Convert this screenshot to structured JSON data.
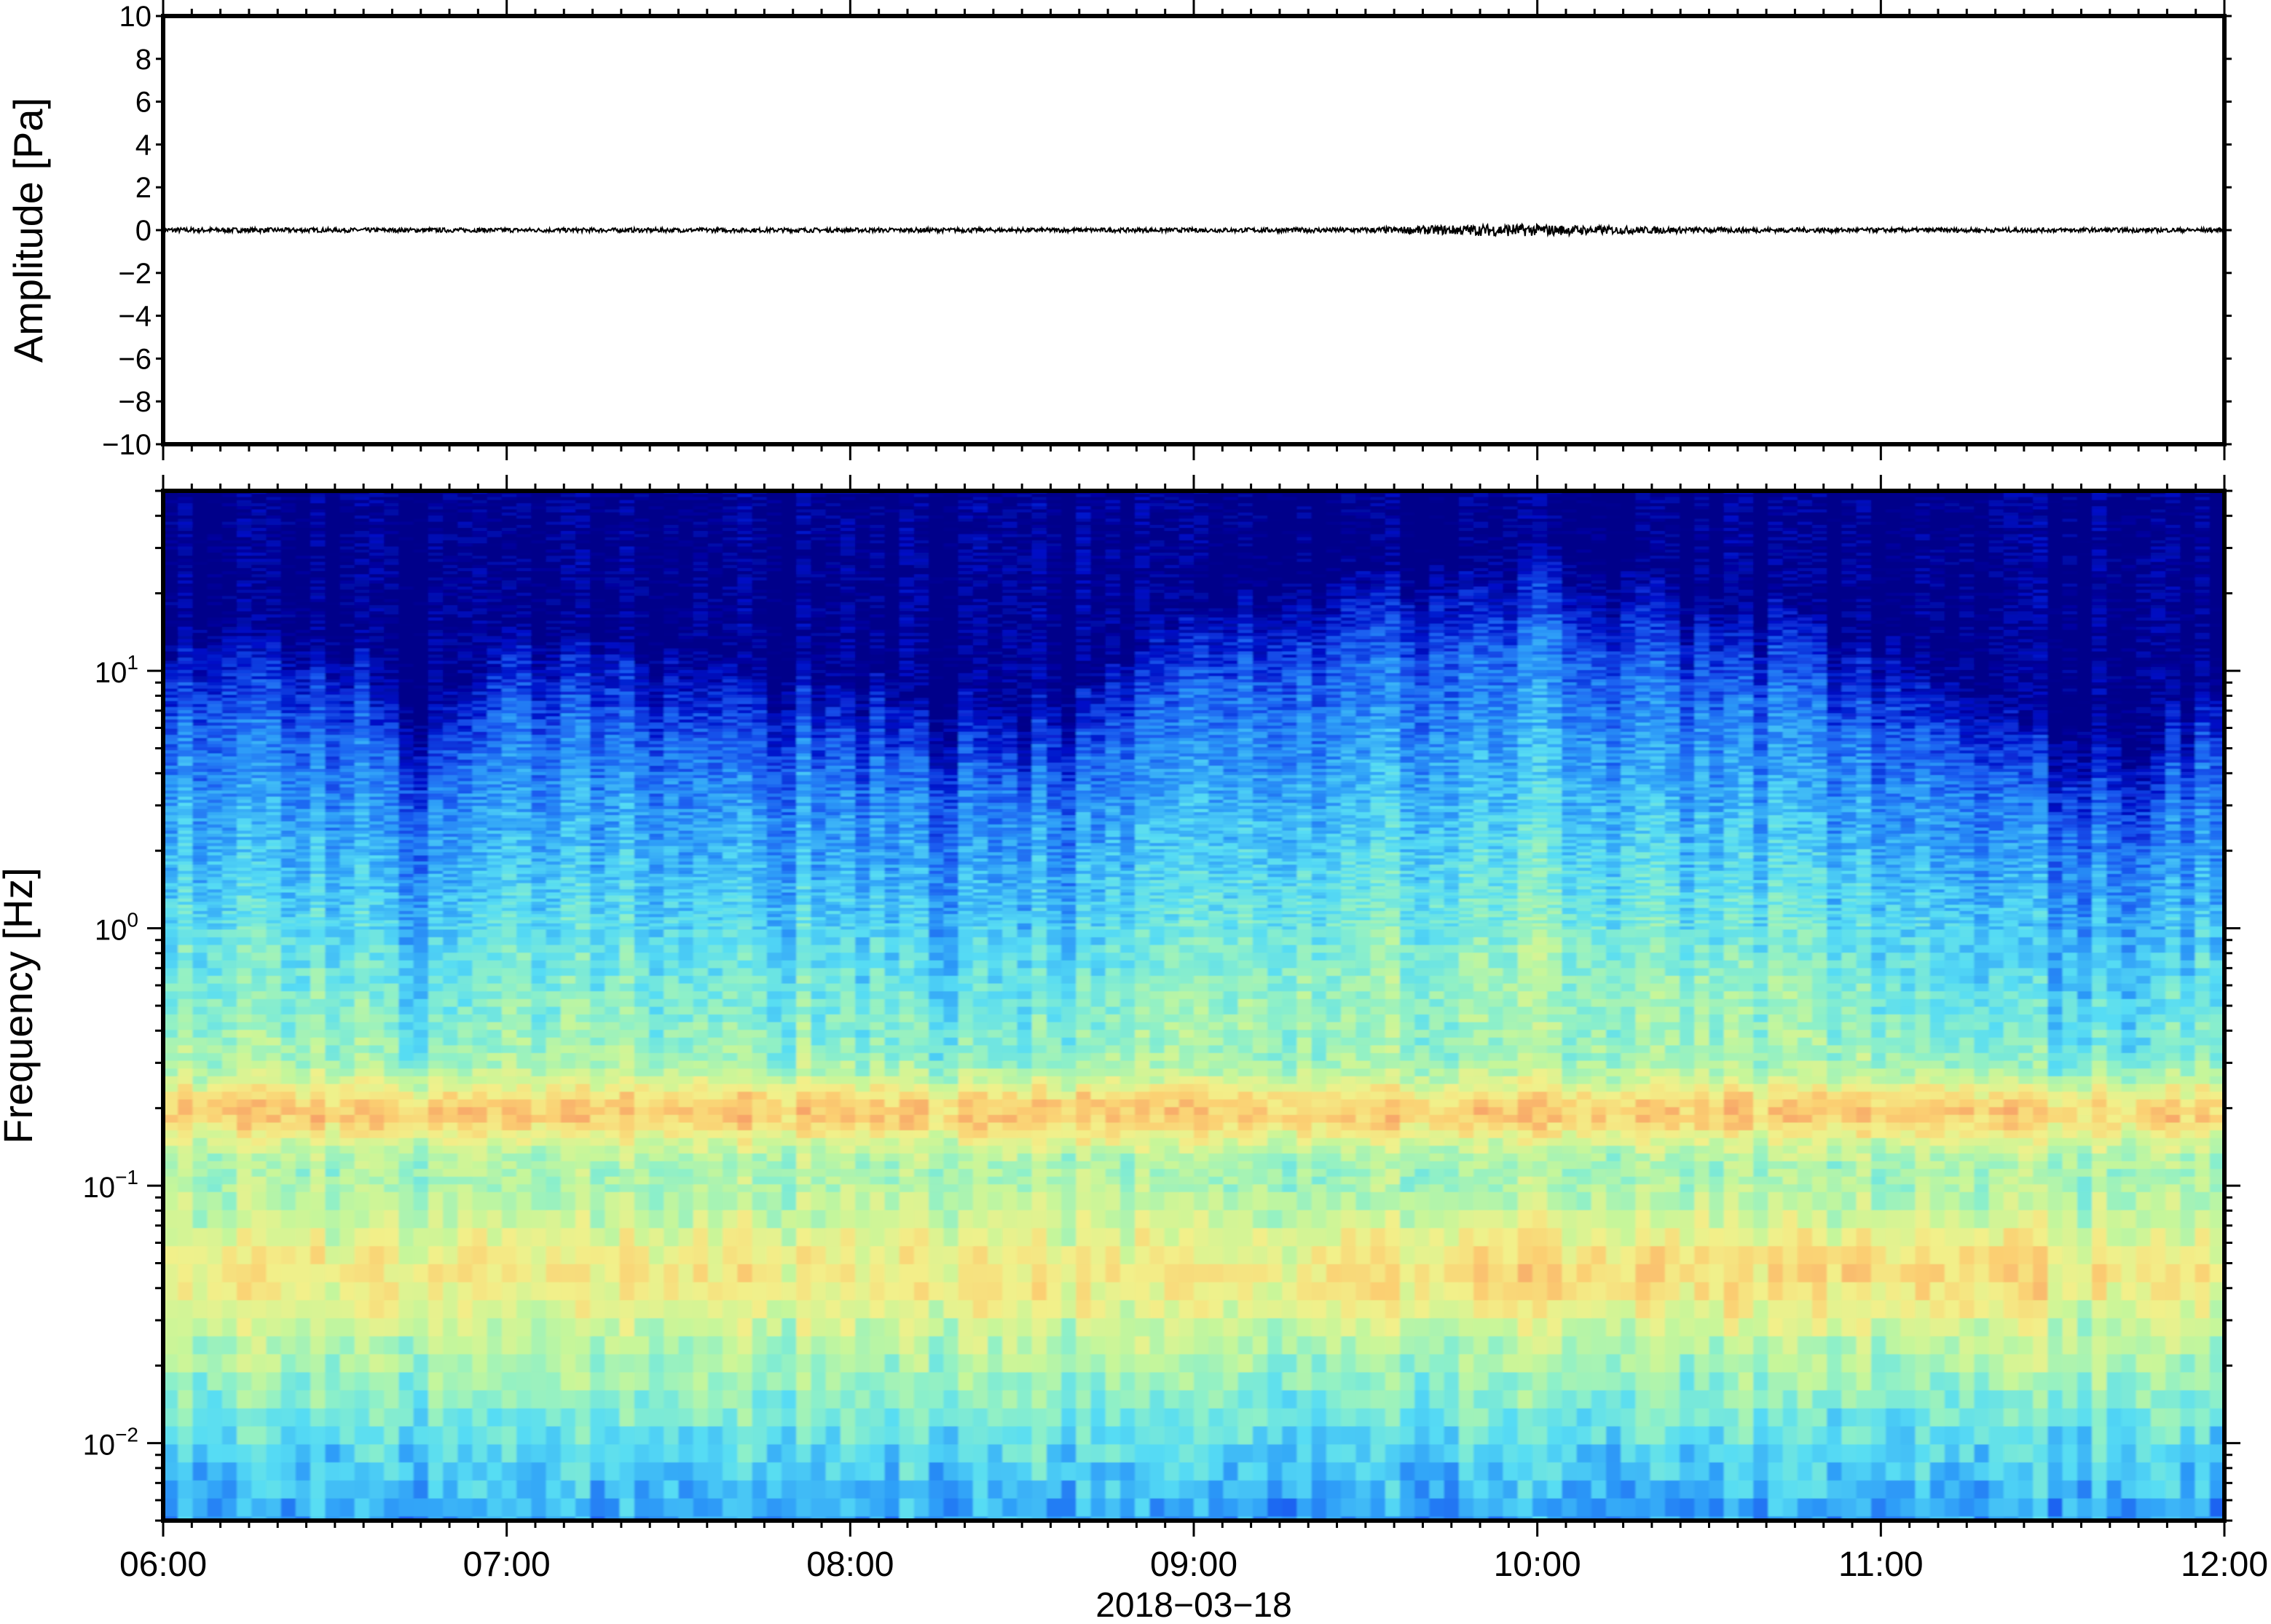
{
  "chart_data": [
    {
      "type": "line",
      "panel": "waveform",
      "ylabel": "Amplitude [Pa]",
      "ylim": [
        -10,
        10
      ],
      "y_ticks": [
        "10",
        "8",
        "6",
        "4",
        "2",
        "0",
        "−2",
        "−4",
        "−6",
        "−8",
        "−10"
      ],
      "x_range": [
        "2018-03-18 06:00",
        "2018-03-18 12:00"
      ],
      "series": [
        {
          "color": "#000000",
          "amplitude_envelope": [
            {
              "x": "06:00",
              "y": 0.12
            },
            {
              "x": "06:30",
              "y": 0.1
            },
            {
              "x": "07:00",
              "y": 0.1
            },
            {
              "x": "07:30",
              "y": 0.1
            },
            {
              "x": "08:00",
              "y": 0.1
            },
            {
              "x": "08:30",
              "y": 0.1
            },
            {
              "x": "09:00",
              "y": 0.1
            },
            {
              "x": "09:30",
              "y": 0.12
            },
            {
              "x": "09:55",
              "y": 0.3
            },
            {
              "x": "10:10",
              "y": 0.2
            },
            {
              "x": "10:30",
              "y": 0.12
            },
            {
              "x": "11:00",
              "y": 0.1
            },
            {
              "x": "11:30",
              "y": 0.1
            },
            {
              "x": "12:00",
              "y": 0.1
            }
          ]
        }
      ],
      "grid": false
    },
    {
      "type": "heatmap",
      "panel": "spectrogram",
      "ylabel": "Frequency [Hz]",
      "xlabel": "2018−03−18",
      "y_scale": "log",
      "ylim": [
        0.005,
        50
      ],
      "y_ticks": [
        {
          "base": "10",
          "exp": "1"
        },
        {
          "base": "10",
          "exp": "0"
        },
        {
          "base": "10",
          "exp": "−1"
        },
        {
          "base": "10",
          "exp": "−2"
        }
      ],
      "x_ticks": [
        "06:00",
        "07:00",
        "08:00",
        "09:00",
        "10:00",
        "11:00",
        "12:00"
      ],
      "colormap": [
        "#00008a",
        "#0010c8",
        "#1a5cf0",
        "#2fa0f8",
        "#56dcf4",
        "#8ef0c8",
        "#c6f69a",
        "#f2f08a",
        "#fbcf72",
        "#f7a468"
      ],
      "high_freq_edge_hz": [
        {
          "x": "06:00",
          "f": 6
        },
        {
          "x": "06:30",
          "f": 6
        },
        {
          "x": "06:45",
          "f": 3
        },
        {
          "x": "07:00",
          "f": 6
        },
        {
          "x": "08:00",
          "f": 4
        },
        {
          "x": "08:30",
          "f": 3
        },
        {
          "x": "09:00",
          "f": 8
        },
        {
          "x": "10:00",
          "f": 12
        },
        {
          "x": "11:00",
          "f": 6
        },
        {
          "x": "11:45",
          "f": 2
        },
        {
          "x": "12:00",
          "f": 5
        }
      ],
      "peak_band_hz": [
        0.17,
        0.22
      ],
      "secondary_peak_band_hz": [
        0.03,
        0.07
      ],
      "grid": false
    }
  ]
}
